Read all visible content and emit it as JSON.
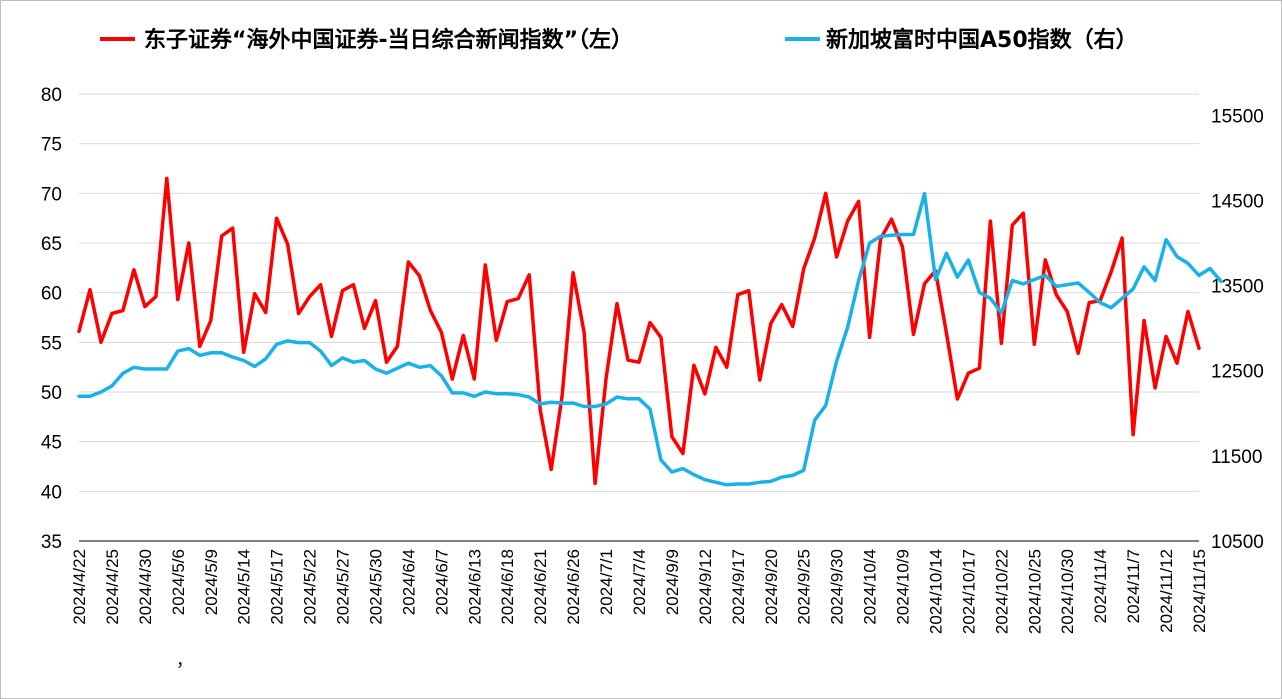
{
  "chart_data": {
    "type": "line",
    "legend": {
      "placement": "top",
      "items": [
        {
          "label": "东子证券“海外中国证券-当日综合新闻指数”（左）",
          "color": "#ff0000"
        },
        {
          "label": "新加坡富时中国A50指数（右）",
          "color": "#1ab0e8"
        }
      ]
    },
    "grid": true,
    "y_left": {
      "min": 35,
      "max": 80,
      "ticks": [
        35,
        40,
        45,
        50,
        55,
        60,
        65,
        70,
        75,
        80
      ]
    },
    "y_right": {
      "min": 10500,
      "max": 15750,
      "ticks": [
        10500,
        11500,
        12500,
        13500,
        14500,
        15500
      ]
    },
    "x_tick_labels": [
      "2024/4/22",
      "2024/4/25",
      "2024/4/30",
      "2024/5/6",
      "2024/5/9",
      "2024/5/14",
      "2024/5/17",
      "2024/5/22",
      "2024/5/27",
      "2024/5/30",
      "2024/6/4",
      "2024/6/7",
      "2024/6/13",
      "2024/6/18",
      "2024/6/21",
      "2024/6/26",
      "2024/7/1",
      "2024/7/4",
      "2024/9/9",
      "2024/9/12",
      "2024/9/17",
      "2024/9/20",
      "2024/9/25",
      "2024/9/30",
      "2024/10/4",
      "2024/10/9",
      "2024/10/14",
      "2024/10/17",
      "2024/10/22",
      "2024/10/25",
      "2024/10/30",
      "2024/11/4",
      "2024/11/7",
      "2024/11/12",
      "2024/11/15"
    ],
    "stray_mark": "，",
    "series": [
      {
        "name": "东子证券“海外中国证券-当日综合新闻指数”（左）",
        "axis": "left",
        "color": "#ff0000",
        "values": [
          56.1,
          60.3,
          55.0,
          57.9,
          58.2,
          62.3,
          58.6,
          59.6,
          71.5,
          59.3,
          65.0,
          54.6,
          57.2,
          65.7,
          66.5,
          54.0,
          59.9,
          58.0,
          67.5,
          64.9,
          57.9,
          59.6,
          60.8,
          55.6,
          60.2,
          60.8,
          56.4,
          59.2,
          53.0,
          54.6,
          63.1,
          61.7,
          58.2,
          56.0,
          51.3,
          55.7,
          51.3,
          62.8,
          55.2,
          59.1,
          59.4,
          61.8,
          48.2,
          42.2,
          49.6,
          62.0,
          56.0,
          40.8,
          51.4,
          58.9,
          53.2,
          53.0,
          57.0,
          55.5,
          45.5,
          43.8,
          52.7,
          49.8,
          54.5,
          52.5,
          59.8,
          60.2,
          51.2,
          56.9,
          58.8,
          56.6,
          62.4,
          65.5,
          70.0,
          63.6,
          67.2,
          69.2,
          55.5,
          65.4,
          67.4,
          64.6,
          55.8,
          60.9,
          62.2,
          55.9,
          49.3,
          51.9,
          52.4,
          67.2,
          54.9,
          66.8,
          68.0,
          54.8,
          63.3,
          59.8,
          58.1,
          53.9,
          59.0,
          59.2,
          62.1,
          65.5,
          45.7,
          57.2,
          50.4,
          55.6,
          52.9,
          58.1,
          54.4
        ]
      },
      {
        "name": "新加坡富时中国A50指数（右）",
        "axis": "right",
        "color": "#1ab0e8",
        "values": [
          12200,
          12200,
          12250,
          12320,
          12470,
          12540,
          12520,
          12520,
          12520,
          12730,
          12760,
          12680,
          12710,
          12710,
          12660,
          12620,
          12550,
          12640,
          12810,
          12850,
          12830,
          12830,
          12730,
          12560,
          12650,
          12600,
          12620,
          12520,
          12470,
          12530,
          12590,
          12540,
          12560,
          12440,
          12240,
          12240,
          12200,
          12250,
          12230,
          12230,
          12220,
          12190,
          12110,
          12130,
          12120,
          12120,
          12080,
          12080,
          12110,
          12190,
          12170,
          12170,
          12050,
          11450,
          11310,
          11350,
          11280,
          11220,
          11190,
          11160,
          11170,
          11170,
          11190,
          11200,
          11250,
          11270,
          11330,
          11920,
          12090,
          12610,
          13010,
          13560,
          14000,
          14080,
          14090,
          14100,
          14100,
          14580,
          13570,
          13880,
          13600,
          13800,
          13420,
          13350,
          13180,
          13560,
          13520,
          13570,
          13620,
          13490,
          13510,
          13530,
          13420,
          13300,
          13240,
          13350,
          13460,
          13720,
          13560,
          14040,
          13840,
          13760,
          13620,
          13700,
          13550
        ]
      }
    ]
  }
}
